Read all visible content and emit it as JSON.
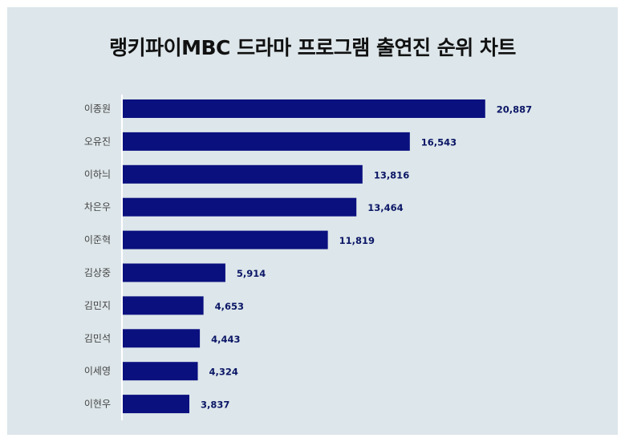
{
  "chart_data": {
    "type": "bar",
    "orientation": "horizontal",
    "title": "랭키파이MBC 드라마 프로그램 출연진 순위 차트",
    "categories": [
      "이종원",
      "오유진",
      "이하늬",
      "차은우",
      "이준혁",
      "김상중",
      "김민지",
      "김민석",
      "이세영",
      "이현우"
    ],
    "values": [
      20887,
      16543,
      13816,
      13464,
      11819,
      5914,
      4653,
      4443,
      4324,
      3837
    ],
    "value_labels": [
      "20,887",
      "16,543",
      "13,816",
      "13,464",
      "11,819",
      "5,914",
      "4,653",
      "4,443",
      "4,324",
      "3,837"
    ],
    "xlim": [
      0,
      22100
    ],
    "grid": false,
    "bar_color": "#0a107e",
    "label_color": "#0b1766",
    "background_color": "#dde6ea"
  }
}
